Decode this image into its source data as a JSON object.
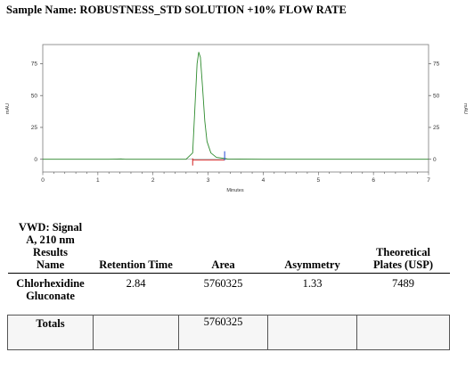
{
  "sample": {
    "label": "Sample Name: ROBUSTNESS_STD SOLUTION +10% FLOW RATE"
  },
  "chart_data": {
    "type": "line",
    "title": "",
    "xlabel": "Minutes",
    "ylabel": "mAU",
    "ylabel_right": "mAU",
    "xlim": [
      0,
      7
    ],
    "ylim": [
      -10,
      90
    ],
    "x_ticks": [
      "0",
      "1",
      "2",
      "3",
      "4",
      "5",
      "6",
      "7"
    ],
    "y_ticks": [
      "0",
      "25",
      "50",
      "75"
    ],
    "grid": false,
    "series": [
      {
        "color": "#2e8b2e",
        "x": [
          0.0,
          1.2,
          1.42,
          1.5,
          2.6,
          2.72,
          2.76,
          2.8,
          2.83,
          2.86,
          2.9,
          2.94,
          2.98,
          3.05,
          3.15,
          3.35,
          4.0,
          5.0,
          6.0,
          7.0
        ],
        "y": [
          0.0,
          0.0,
          0.3,
          0.0,
          0.0,
          5.0,
          40.0,
          75.0,
          84.0,
          80.0,
          56.0,
          30.0,
          14.0,
          5.0,
          1.5,
          0.3,
          0.0,
          0.0,
          0.0,
          0.0
        ]
      }
    ],
    "peak_markers": [
      {
        "kind": "start",
        "x": 2.72,
        "color": "#d21f1f"
      },
      {
        "kind": "end",
        "x": 3.3,
        "color": "#2547d6"
      }
    ]
  },
  "results": {
    "signal_label_lines": [
      "VWD: Signal",
      "A, 210 nm",
      "Results",
      "Name"
    ],
    "columns": {
      "retention_time": "Retention Time",
      "area": "Area",
      "asymmetry": "Asymmetry",
      "plates_line1": "Theoretical",
      "plates_line2": "Plates (USP)"
    },
    "rows": [
      {
        "name_line1": "Chlorhexidine",
        "name_line2": "Gluconate",
        "retention_time": "2.84",
        "area": "5760325",
        "asymmetry": "1.33",
        "plates": "7489"
      }
    ],
    "totals": {
      "label": "Totals",
      "area": "5760325"
    }
  }
}
